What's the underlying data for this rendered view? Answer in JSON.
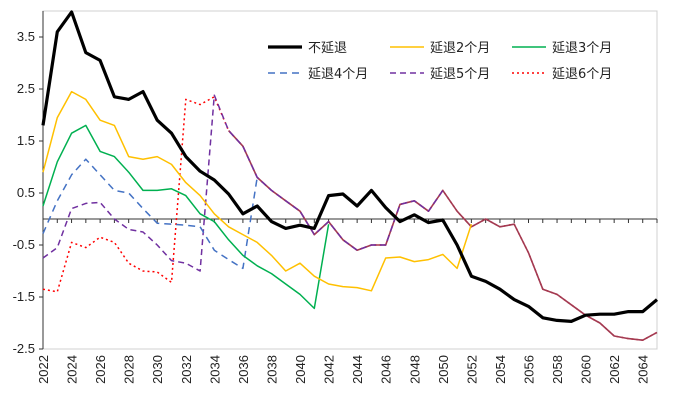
{
  "chart_data": {
    "type": "line",
    "title": "",
    "xlabel": "",
    "ylabel": "",
    "x": [
      2022,
      2023,
      2024,
      2025,
      2026,
      2027,
      2028,
      2029,
      2030,
      2031,
      2032,
      2033,
      2034,
      2035,
      2036,
      2037,
      2038,
      2039,
      2040,
      2041,
      2042,
      2043,
      2044,
      2045,
      2046,
      2047,
      2048,
      2049,
      2050,
      2051,
      2052,
      2053,
      2054,
      2055,
      2056,
      2057,
      2058,
      2059,
      2060,
      2061,
      2062,
      2063,
      2064,
      2065
    ],
    "x_tick_labels": [
      "2022",
      "2024",
      "2026",
      "2028",
      "2030",
      "2032",
      "2034",
      "2036",
      "2038",
      "2040",
      "2042",
      "2044",
      "2046",
      "2048",
      "2050",
      "2052",
      "2054",
      "2056",
      "2058",
      "2060",
      "2062",
      "2064"
    ],
    "y_tick_values": [
      3.5,
      2.5,
      1.5,
      0.5,
      -0.5,
      -1.5,
      -2.5
    ],
    "y_tick_labels": [
      "3.5",
      "2.5",
      "1.5",
      "0.5",
      "-0.5",
      "-1.5",
      "-2.5"
    ],
    "ylim": [
      -2.5,
      4.0
    ],
    "grid": false,
    "legend_position": "top-right",
    "series": [
      {
        "name": "不延退",
        "color": "#000000",
        "width": 3.2,
        "dash": "",
        "values": [
          1.8,
          3.6,
          3.98,
          3.2,
          3.05,
          2.35,
          2.3,
          2.45,
          1.9,
          1.65,
          1.2,
          0.92,
          0.75,
          0.48,
          0.1,
          0.25,
          -0.05,
          -0.18,
          -0.12,
          -0.18,
          0.45,
          0.48,
          0.25,
          0.55,
          0.22,
          -0.05,
          0.08,
          -0.07,
          -0.02,
          -0.5,
          -1.1,
          -1.2,
          -1.35,
          -1.55,
          -1.68,
          -1.9,
          -1.95,
          -1.97,
          -1.85,
          -1.83,
          -1.83,
          -1.78,
          -1.78,
          -1.55
        ]
      },
      {
        "name": "延退2个月",
        "color": "#FFC000",
        "width": 1.5,
        "dash": "",
        "values": [
          0.9,
          1.95,
          2.45,
          2.3,
          1.9,
          1.8,
          1.2,
          1.15,
          1.2,
          1.05,
          0.7,
          0.45,
          0.1,
          -0.15,
          -0.3,
          -0.45,
          -0.7,
          -1.0,
          -0.85,
          -1.1,
          -1.25,
          -1.3,
          -1.32,
          -1.38,
          -0.75,
          -0.73,
          -0.82,
          -0.78,
          -0.68,
          -0.95,
          -0.1,
          null,
          null,
          null,
          null,
          null,
          null,
          null,
          null,
          null,
          null,
          null,
          null,
          null
        ]
      },
      {
        "name": "延退3个月",
        "color": "#00B050",
        "width": 1.5,
        "dash": "",
        "values": [
          0.25,
          1.1,
          1.65,
          1.8,
          1.3,
          1.2,
          0.9,
          0.55,
          0.55,
          0.58,
          0.45,
          0.1,
          -0.05,
          -0.4,
          -0.7,
          -0.9,
          -1.05,
          -1.25,
          -1.45,
          -1.72,
          -0.1,
          null,
          null,
          null,
          null,
          null,
          null,
          null,
          null,
          null,
          null,
          null,
          null,
          null,
          null,
          null,
          null,
          null,
          null,
          null,
          null,
          null,
          null,
          null
        ]
      },
      {
        "name": "延退4个月",
        "color": "#4472C4",
        "width": 1.5,
        "dash": "7,5",
        "values": [
          -0.28,
          0.35,
          0.85,
          1.15,
          0.85,
          0.55,
          0.5,
          0.2,
          -0.08,
          -0.1,
          -0.12,
          -0.15,
          -0.6,
          -0.78,
          -0.95,
          0.8,
          null,
          null,
          null,
          null,
          null,
          null,
          null,
          null,
          null,
          null,
          null,
          null,
          null,
          null,
          null,
          null,
          null,
          null,
          null,
          null,
          null,
          null,
          null,
          null,
          null,
          null,
          null,
          null
        ]
      },
      {
        "name": "延退5个月",
        "color": "#7030A0",
        "width": 1.5,
        "dash": "6,4",
        "values": [
          -0.75,
          -0.55,
          0.2,
          0.3,
          0.32,
          0.0,
          -0.2,
          -0.25,
          -0.5,
          -0.8,
          -0.85,
          -1.0,
          2.38,
          1.7,
          1.4,
          0.8,
          0.55,
          0.35,
          0.15,
          -0.3,
          -0.05,
          -0.4,
          -0.6,
          -0.5,
          -0.5,
          0.28,
          0.35,
          0.15,
          0.55,
          null,
          null,
          null,
          null,
          null,
          null,
          null,
          null,
          null,
          null,
          null,
          null,
          null,
          null,
          null
        ]
      },
      {
        "name": "延退6个月",
        "color": "#FF0000",
        "width": 1.5,
        "dash": "2,3",
        "values": [
          -1.35,
          -1.4,
          -0.45,
          -0.55,
          -0.35,
          -0.45,
          -0.85,
          -1.0,
          -1.02,
          -1.22,
          2.3,
          2.2,
          2.35,
          1.7,
          1.4,
          0.8,
          0.55,
          0.35,
          0.15,
          -0.3,
          -0.05,
          -0.4,
          -0.6,
          -0.5,
          -0.5,
          0.28,
          0.35,
          0.15,
          0.55,
          0.15,
          -0.15,
          0.0,
          -0.15,
          -0.1,
          -0.65,
          -1.35,
          -1.45,
          -1.65,
          -1.85,
          -2.0,
          -2.25,
          -2.3,
          -2.33,
          -2.18
        ]
      }
    ],
    "overlay_series": {
      "name": "",
      "color": "#A23A52",
      "width": 1.6,
      "start_index": 13,
      "values": [
        1.7,
        1.4,
        0.8,
        0.55,
        0.35,
        0.15,
        -0.3,
        -0.05,
        -0.4,
        -0.6,
        -0.5,
        -0.5,
        0.28,
        0.35,
        0.15,
        0.55,
        0.15,
        -0.15,
        0.0,
        -0.15,
        -0.1,
        -0.65,
        -1.35,
        -1.45,
        -1.65,
        -1.85,
        -2.0,
        -2.25,
        -2.3,
        -2.33,
        -2.18
      ]
    }
  }
}
